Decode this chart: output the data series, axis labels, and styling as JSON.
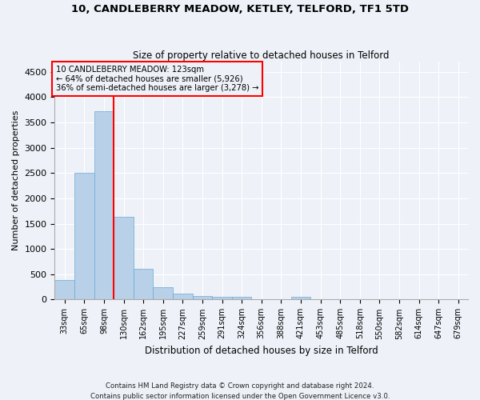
{
  "title": "10, CANDLEBERRY MEADOW, KETLEY, TELFORD, TF1 5TD",
  "subtitle": "Size of property relative to detached houses in Telford",
  "xlabel": "Distribution of detached houses by size in Telford",
  "ylabel": "Number of detached properties",
  "footer1": "Contains HM Land Registry data © Crown copyright and database right 2024.",
  "footer2": "Contains public sector information licensed under the Open Government Licence v3.0.",
  "bar_color": "#b8d0e8",
  "bar_edge_color": "#6aaad4",
  "categories": [
    "33sqm",
    "65sqm",
    "98sqm",
    "130sqm",
    "162sqm",
    "195sqm",
    "227sqm",
    "259sqm",
    "291sqm",
    "324sqm",
    "356sqm",
    "388sqm",
    "421sqm",
    "453sqm",
    "485sqm",
    "518sqm",
    "550sqm",
    "582sqm",
    "614sqm",
    "647sqm",
    "679sqm"
  ],
  "values": [
    380,
    2500,
    3720,
    1640,
    600,
    250,
    115,
    65,
    55,
    50,
    0,
    0,
    55,
    0,
    0,
    0,
    0,
    0,
    0,
    0,
    0
  ],
  "red_line_x": 2.5,
  "annotation_title": "10 CANDLEBERRY MEADOW: 123sqm",
  "annotation_line1": "← 64% of detached houses are smaller (5,926)",
  "annotation_line2": "36% of semi-detached houses are larger (3,278) →",
  "ylim": [
    0,
    4700
  ],
  "yticks": [
    0,
    500,
    1000,
    1500,
    2000,
    2500,
    3000,
    3500,
    4000,
    4500
  ],
  "background_color": "#eef2f8",
  "grid_color": "#ffffff"
}
